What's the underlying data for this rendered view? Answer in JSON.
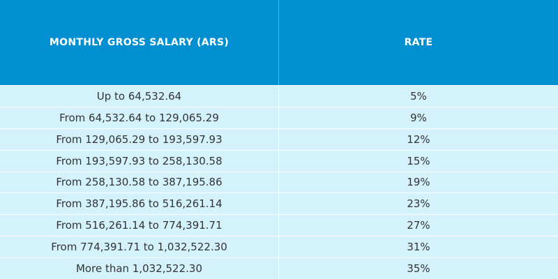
{
  "table": {
    "header": [
      "MONTHLY GROSS SALARY (ARS)",
      "RATE"
    ],
    "rows": [
      [
        "Up to 64,532.64",
        "5%"
      ],
      [
        "From 64,532.64 to 129,065.29",
        "9%"
      ],
      [
        "From 129,065.29 to 193,597.93",
        "12%"
      ],
      [
        "From 193,597.93 to 258,130.58",
        "15%"
      ],
      [
        "From 258,130.58 to 387,195.86",
        "19%"
      ],
      [
        "From 387,195.86 to 516,261.14",
        "23%"
      ],
      [
        "From 516,261.14 to 774,391.71",
        "27%"
      ],
      [
        "From 774,391.71 to 1,032,522.30",
        "31%"
      ],
      [
        "More than 1,032,522.30",
        "35%"
      ]
    ]
  }
}
